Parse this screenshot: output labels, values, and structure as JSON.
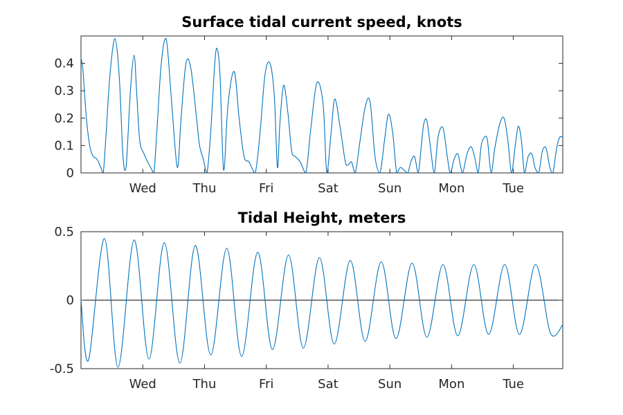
{
  "colors": {
    "series": "#0072BD",
    "axis": "#262626",
    "zero_line": "#000000"
  },
  "chart_data": [
    {
      "type": "line",
      "title": "Surface tidal current speed, knots",
      "xlabel": "",
      "ylabel": "",
      "x_unit": "days",
      "xlim": [
        0,
        7.8
      ],
      "ylim": [
        0,
        0.5
      ],
      "x_ticks": [
        {
          "x": 1,
          "label": "Wed"
        },
        {
          "x": 2,
          "label": "Thu"
        },
        {
          "x": 3,
          "label": "Fri"
        },
        {
          "x": 4,
          "label": "Sat"
        },
        {
          "x": 5,
          "label": "Sun"
        },
        {
          "x": 6,
          "label": "Mon"
        },
        {
          "x": 7,
          "label": "Tue"
        }
      ],
      "y_ticks": [
        {
          "y": 0,
          "label": "0"
        },
        {
          "y": 0.1,
          "label": "0.1"
        },
        {
          "y": 0.2,
          "label": "0.2"
        },
        {
          "y": 0.3,
          "label": "0.3"
        },
        {
          "y": 0.4,
          "label": "0.4"
        }
      ],
      "grid": false,
      "series": [
        {
          "x": [
            0,
            0.03,
            0.06,
            0.1,
            0.15,
            0.2,
            0.26,
            0.32,
            0.36,
            0.4,
            0.47,
            0.55,
            0.62,
            0.68,
            0.73,
            0.8,
            0.86,
            0.9,
            0.95,
            1.02,
            1.08,
            1.13,
            1.18,
            1.23,
            1.3,
            1.38,
            1.47,
            1.56,
            1.62,
            1.7,
            1.78,
            1.88,
            1.92,
            1.98,
            2.04,
            2.1,
            2.16,
            2.2,
            2.25,
            2.31,
            2.38,
            2.48,
            2.56,
            2.64,
            2.72,
            2.82,
            2.9,
            2.98,
            3.06,
            3.13,
            3.18,
            3.22,
            3.28,
            3.35,
            3.41,
            3.47,
            3.55,
            3.64,
            3.72,
            3.82,
            3.92,
            3.98,
            4.05,
            4.11,
            4.2,
            4.28,
            4.33,
            4.38,
            4.44,
            4.52,
            4.6,
            4.68,
            4.76,
            4.84,
            4.92,
            4.98,
            5.05,
            5.11,
            5.17,
            5.23,
            5.29,
            5.34,
            5.4,
            5.46,
            5.51,
            5.55,
            5.6,
            5.66,
            5.72,
            5.78,
            5.86,
            5.93,
            5.98,
            6.04,
            6.1,
            6.14,
            6.18,
            6.25,
            6.32,
            6.38,
            6.43,
            6.48,
            6.53,
            6.58,
            6.64,
            6.7,
            6.78,
            6.85,
            6.91,
            6.97,
            7.03,
            7.08,
            7.13,
            7.18,
            7.24,
            7.3,
            7.35,
            7.41,
            7.47,
            7.53,
            7.59,
            7.64,
            7.7,
            7.75,
            7.8
          ],
          "y": [
            0.42,
            0.38,
            0.28,
            0.17,
            0.09,
            0.06,
            0.05,
            0.02,
            0.0,
            0.12,
            0.36,
            0.49,
            0.35,
            0.06,
            0.02,
            0.3,
            0.43,
            0.3,
            0.12,
            0.07,
            0.04,
            0.02,
            0.0,
            0.16,
            0.4,
            0.49,
            0.25,
            0.02,
            0.2,
            0.4,
            0.38,
            0.18,
            0.1,
            0.05,
            0.0,
            0.15,
            0.38,
            0.455,
            0.36,
            0.01,
            0.25,
            0.37,
            0.2,
            0.06,
            0.04,
            0.0,
            0.15,
            0.36,
            0.4,
            0.28,
            0.02,
            0.18,
            0.32,
            0.22,
            0.08,
            0.06,
            0.04,
            0.0,
            0.16,
            0.33,
            0.25,
            0.0,
            0.15,
            0.27,
            0.16,
            0.04,
            0.03,
            0.04,
            0.0,
            0.12,
            0.24,
            0.26,
            0.06,
            0.0,
            0.13,
            0.215,
            0.14,
            0.0,
            0.02,
            0.01,
            0.0,
            0.04,
            0.06,
            0.0,
            0.1,
            0.18,
            0.19,
            0.09,
            0.0,
            0.13,
            0.165,
            0.06,
            0.0,
            0.05,
            0.07,
            0.03,
            0.0,
            0.07,
            0.095,
            0.05,
            0.0,
            0.1,
            0.13,
            0.12,
            0.0,
            0.09,
            0.18,
            0.2,
            0.12,
            0.0,
            0.1,
            0.17,
            0.12,
            0.0,
            0.06,
            0.07,
            0.02,
            0.0,
            0.08,
            0.09,
            0.02,
            0.0,
            0.09,
            0.13,
            0.13
          ]
        }
      ]
    },
    {
      "type": "line",
      "title": "Tidal Height, meters",
      "xlabel": "",
      "ylabel": "",
      "x_unit": "days",
      "xlim": [
        0,
        7.8
      ],
      "ylim": [
        -0.5,
        0.5
      ],
      "x_ticks": [
        {
          "x": 1,
          "label": "Wed"
        },
        {
          "x": 2,
          "label": "Thu"
        },
        {
          "x": 3,
          "label": "Fri"
        },
        {
          "x": 4,
          "label": "Sat"
        },
        {
          "x": 5,
          "label": "Sun"
        },
        {
          "x": 6,
          "label": "Mon"
        },
        {
          "x": 7,
          "label": "Tue"
        }
      ],
      "y_ticks": [
        {
          "y": -0.5,
          "label": "-0.5"
        },
        {
          "y": 0,
          "label": "0"
        },
        {
          "y": 0.5,
          "label": "0.5"
        }
      ],
      "zero_line": true,
      "grid": false,
      "series": [
        {
          "x": [
            0,
            0.12,
            0.38,
            0.6,
            0.86,
            1.1,
            1.35,
            1.6,
            1.85,
            2.1,
            2.36,
            2.6,
            2.86,
            3.1,
            3.36,
            3.6,
            3.86,
            4.1,
            4.36,
            4.6,
            4.86,
            5.1,
            5.36,
            5.6,
            5.86,
            6.1,
            6.36,
            6.6,
            6.86,
            7.1,
            7.36,
            7.6,
            7.8
          ],
          "y": [
            0,
            -0.44,
            0.45,
            -0.49,
            0.44,
            -0.43,
            0.42,
            -0.46,
            0.4,
            -0.4,
            0.38,
            -0.41,
            0.35,
            -0.36,
            0.33,
            -0.35,
            0.31,
            -0.32,
            0.29,
            -0.3,
            0.28,
            -0.28,
            0.27,
            -0.27,
            0.26,
            -0.26,
            0.26,
            -0.25,
            0.26,
            -0.25,
            0.26,
            -0.24,
            -0.18
          ]
        }
      ]
    }
  ]
}
